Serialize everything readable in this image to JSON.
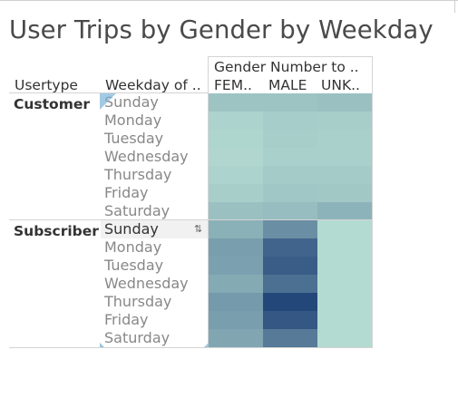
{
  "title": "User Trips by Gender by Weekday",
  "headers": {
    "col1": "Usertype",
    "col2": "Weekday of ..",
    "measure": "Gender Number to ..",
    "genders": [
      "FEM..",
      "MALE",
      "UNK.."
    ]
  },
  "sort_icon": "sort-icon",
  "chart_data": {
    "type": "heatmap",
    "title": "User Trips by Gender by Weekday",
    "row_dimensions": [
      "Usertype",
      "Weekday of .."
    ],
    "column_dimension": "Gender Number to ..",
    "columns": [
      "FEM..",
      "MALE",
      "UNK.."
    ],
    "color_scale": {
      "low": "#bfe6d8",
      "high": "#24477a"
    },
    "groups": [
      {
        "usertype": "Customer",
        "rows": [
          {
            "weekday": "Sunday",
            "values": [
              0.22,
              0.22,
              0.24
            ]
          },
          {
            "weekday": "Monday",
            "values": [
              0.12,
              0.16,
              0.15
            ]
          },
          {
            "weekday": "Tuesday",
            "values": [
              0.11,
              0.15,
              0.14
            ]
          },
          {
            "weekday": "Wednesday",
            "values": [
              0.1,
              0.14,
              0.14
            ]
          },
          {
            "weekday": "Thursday",
            "values": [
              0.12,
              0.17,
              0.17
            ]
          },
          {
            "weekday": "Friday",
            "values": [
              0.15,
              0.2,
              0.19
            ]
          },
          {
            "weekday": "Saturday",
            "values": [
              0.24,
              0.26,
              0.32
            ]
          }
        ]
      },
      {
        "usertype": "Subscriber",
        "rows": [
          {
            "weekday": "Sunday",
            "values": [
              0.34,
              0.55,
              0.07
            ]
          },
          {
            "weekday": "Monday",
            "values": [
              0.45,
              0.82,
              0.07
            ]
          },
          {
            "weekday": "Tuesday",
            "values": [
              0.44,
              0.86,
              0.07
            ]
          },
          {
            "weekday": "Wednesday",
            "values": [
              0.38,
              0.74,
              0.07
            ]
          },
          {
            "weekday": "Thursday",
            "values": [
              0.48,
              1.0,
              0.07
            ]
          },
          {
            "weekday": "Friday",
            "values": [
              0.45,
              0.9,
              0.07
            ]
          },
          {
            "weekday": "Saturday",
            "values": [
              0.4,
              0.68,
              0.07
            ]
          }
        ]
      }
    ]
  }
}
